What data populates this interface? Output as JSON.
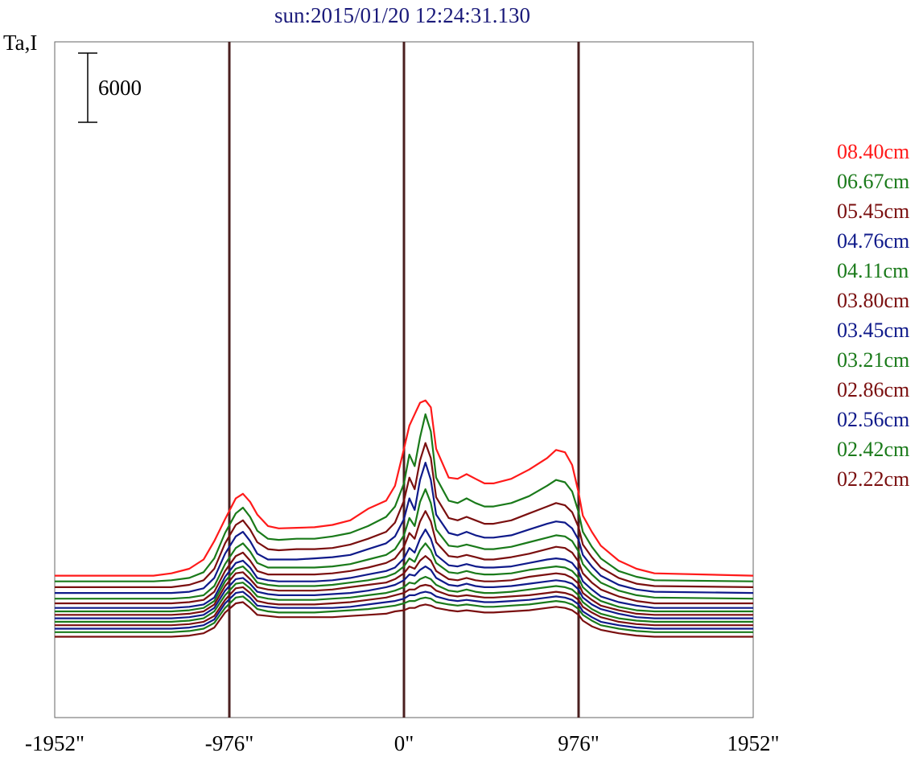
{
  "chart_data": {
    "type": "line",
    "title": "sun:2015/01/20 12:24:31.130",
    "ylabel": "Ta,I",
    "scale_bar_label": "6000",
    "xlim": [
      -1952,
      1952
    ],
    "x_ticks": [
      "-1952\"",
      "-976\"",
      "0\"",
      "976\"",
      "1952\""
    ],
    "vertical_lines_at": [
      -976,
      0,
      976
    ],
    "legend": [
      "08.40cm",
      "06.67cm",
      "05.45cm",
      "04.76cm",
      "04.11cm",
      "03.80cm",
      "03.45cm",
      "03.21cm",
      "02.86cm",
      "02.56cm",
      "02.42cm",
      "02.22cm"
    ],
    "legend_colors": [
      "#ff1a1a",
      "#1a7a1a",
      "#7a0f0f",
      "#0f1a8a",
      "#1a7a1a",
      "#7a0f0f",
      "#0f1a8a",
      "#1a7a1a",
      "#7a0f0f",
      "#0f1a8a",
      "#1a7a1a",
      "#7a0f0f"
    ],
    "series_colors": [
      "#ff1a1a",
      "#1a7a1a",
      "#7a0f0f",
      "#0f1a8a",
      "#1a7a1a",
      "#7a0f0f",
      "#0f1a8a",
      "#1a7a1a",
      "#7a0f0f",
      "#0f1a8a",
      "#1a7a1a",
      "#7a0f0f",
      "#0f1a8a",
      "#1a7a1a",
      "#7a0f0f"
    ],
    "profile_x": [
      -1952,
      -1400,
      -1300,
      -1200,
      -1120,
      -1060,
      -1000,
      -940,
      -900,
      -860,
      -820,
      -760,
      -700,
      -600,
      -500,
      -400,
      -300,
      -200,
      -100,
      -50,
      0,
      30,
      60,
      90,
      120,
      150,
      180,
      250,
      300,
      350,
      400,
      450,
      500,
      600,
      700,
      800,
      850,
      900,
      940,
      976,
      1000,
      1050,
      1100,
      1200,
      1300,
      1400,
      1952
    ],
    "series": [
      {
        "offset": 3100,
        "values": [
          0,
          0,
          200,
          600,
          1400,
          3000,
          4900,
          6700,
          7100,
          6400,
          5300,
          4300,
          4100,
          4150,
          4200,
          4400,
          4800,
          5800,
          6500,
          7800,
          11000,
          13000,
          14000,
          15000,
          15200,
          14600,
          11000,
          8500,
          8400,
          8800,
          8400,
          8000,
          8000,
          8400,
          9200,
          10200,
          10900,
          10700,
          9600,
          7200,
          5200,
          3800,
          2600,
          1300,
          600,
          200,
          0
        ]
      },
      {
        "offset": 2600,
        "values": [
          0,
          0,
          100,
          300,
          800,
          2000,
          4200,
          5900,
          6400,
          5600,
          4400,
          3700,
          3600,
          3700,
          3700,
          3900,
          4200,
          4800,
          5600,
          6500,
          8500,
          11000,
          10000,
          12500,
          14500,
          13000,
          9000,
          7000,
          6800,
          7200,
          6800,
          6500,
          6500,
          6800,
          7400,
          8300,
          8800,
          8600,
          7800,
          6000,
          4300,
          3000,
          2000,
          900,
          400,
          100,
          0
        ]
      },
      {
        "offset": 2100,
        "values": [
          0,
          0,
          0,
          200,
          600,
          1600,
          3800,
          5400,
          5800,
          5000,
          3900,
          3300,
          3200,
          3300,
          3300,
          3400,
          3700,
          4200,
          4800,
          5600,
          7500,
          9500,
          8500,
          11000,
          12500,
          11200,
          7800,
          6000,
          5800,
          6100,
          5800,
          5500,
          5500,
          5800,
          6400,
          7000,
          7300,
          7100,
          6500,
          5200,
          3700,
          2600,
          1700,
          800,
          300,
          100,
          0
        ]
      },
      {
        "offset": 1600,
        "values": [
          0,
          0,
          0,
          100,
          400,
          1300,
          3400,
          4900,
          5300,
          4500,
          3400,
          2900,
          2900,
          2900,
          3000,
          3100,
          3300,
          3800,
          4300,
          4900,
          6400,
          8200,
          7200,
          9800,
          11300,
          9800,
          6800,
          5200,
          5000,
          5300,
          5000,
          4800,
          4800,
          5000,
          5500,
          6000,
          6200,
          6100,
          5600,
          4600,
          3300,
          2300,
          1500,
          700,
          300,
          100,
          0
        ]
      },
      {
        "offset": 1100,
        "values": [
          0,
          0,
          0,
          100,
          300,
          1100,
          3000,
          4400,
          4800,
          4100,
          3100,
          2700,
          2700,
          2700,
          2700,
          2800,
          3000,
          3400,
          3800,
          4300,
          5500,
          7000,
          6300,
          8400,
          9500,
          8300,
          6000,
          4600,
          4500,
          4700,
          4500,
          4300,
          4300,
          4500,
          4900,
          5300,
          5500,
          5400,
          5000,
          4100,
          3000,
          2100,
          1400,
          700,
          300,
          100,
          0
        ]
      },
      {
        "offset": 700,
        "values": [
          0,
          0,
          0,
          100,
          300,
          1000,
          2800,
          4100,
          4400,
          3700,
          2800,
          2500,
          2500,
          2500,
          2500,
          2600,
          2800,
          3100,
          3500,
          3900,
          4900,
          6100,
          5600,
          7100,
          8000,
          7100,
          5300,
          4100,
          4000,
          4200,
          4000,
          3800,
          3800,
          4000,
          4300,
          4700,
          4900,
          4800,
          4400,
          3600,
          2600,
          1800,
          1200,
          600,
          200,
          0,
          0
        ]
      },
      {
        "offset": 300,
        "values": [
          0,
          0,
          0,
          100,
          300,
          900,
          2700,
          3900,
          4100,
          3500,
          2600,
          2400,
          2300,
          2300,
          2300,
          2400,
          2600,
          2900,
          3200,
          3500,
          4300,
          5200,
          4800,
          6000,
          6800,
          6000,
          4600,
          3700,
          3600,
          3800,
          3600,
          3500,
          3500,
          3600,
          3900,
          4200,
          4300,
          4200,
          3900,
          3200,
          2300,
          1600,
          1000,
          500,
          200,
          0,
          0
        ]
      },
      {
        "offset": 0,
        "values": [
          0,
          0,
          0,
          100,
          300,
          900,
          2600,
          3700,
          3900,
          3300,
          2500,
          2300,
          2200,
          2200,
          2200,
          2300,
          2500,
          2700,
          3000,
          3300,
          3900,
          4600,
          4300,
          5300,
          5900,
          5300,
          4200,
          3400,
          3300,
          3500,
          3300,
          3200,
          3200,
          3300,
          3600,
          3800,
          3900,
          3800,
          3500,
          2900,
          2100,
          1400,
          900,
          400,
          100,
          0,
          0
        ]
      },
      {
        "offset": -300,
        "values": [
          0,
          0,
          0,
          100,
          300,
          900,
          2500,
          3600,
          3700,
          3100,
          2400,
          2200,
          2100,
          2100,
          2100,
          2200,
          2400,
          2600,
          2800,
          3100,
          3600,
          4200,
          4000,
          4700,
          5100,
          4700,
          3800,
          3100,
          3000,
          3200,
          3000,
          2900,
          2900,
          3000,
          3300,
          3500,
          3600,
          3500,
          3200,
          2700,
          1900,
          1300,
          800,
          400,
          100,
          0,
          0
        ]
      },
      {
        "offset": -600,
        "values": [
          0,
          0,
          0,
          100,
          300,
          900,
          2400,
          3400,
          3500,
          3000,
          2300,
          2100,
          2000,
          2000,
          2000,
          2100,
          2200,
          2400,
          2700,
          2900,
          3300,
          3800,
          3700,
          4200,
          4500,
          4200,
          3500,
          2900,
          2800,
          3000,
          2800,
          2700,
          2700,
          2800,
          3000,
          3200,
          3300,
          3200,
          3000,
          2500,
          1800,
          1200,
          800,
          400,
          100,
          0,
          0
        ]
      },
      {
        "offset": -900,
        "values": [
          0,
          0,
          0,
          100,
          300,
          900,
          2300,
          3300,
          3400,
          2900,
          2200,
          2000,
          1900,
          1900,
          1900,
          2000,
          2100,
          2300,
          2500,
          2700,
          3000,
          3400,
          3300,
          3700,
          3900,
          3700,
          3200,
          2700,
          2600,
          2800,
          2600,
          2500,
          2500,
          2600,
          2800,
          3000,
          3100,
          3000,
          2800,
          2300,
          1700,
          1100,
          700,
          300,
          100,
          0,
          0
        ]
      },
      {
        "offset": -1200,
        "values": [
          0,
          0,
          0,
          100,
          300,
          800,
          2200,
          3200,
          3300,
          2800,
          2100,
          1900,
          1800,
          1800,
          1800,
          1900,
          2000,
          2200,
          2400,
          2600,
          2800,
          3100,
          3100,
          3400,
          3500,
          3400,
          3000,
          2600,
          2500,
          2600,
          2500,
          2400,
          2400,
          2500,
          2600,
          2800,
          2900,
          2800,
          2600,
          2200,
          1600,
          1100,
          700,
          300,
          100,
          0,
          0
        ]
      },
      {
        "offset": -1500,
        "values": [
          0,
          0,
          0,
          100,
          300,
          800,
          2200,
          3100,
          3200,
          2700,
          2000,
          1900,
          1800,
          1800,
          1800,
          1800,
          1900,
          2100,
          2300,
          2400,
          2600,
          2900,
          2900,
          3100,
          3200,
          3100,
          2800,
          2500,
          2400,
          2500,
          2400,
          2300,
          2300,
          2400,
          2500,
          2700,
          2800,
          2700,
          2500,
          2100,
          1500,
          1000,
          600,
          300,
          100,
          0,
          0
        ]
      },
      {
        "offset": -1800,
        "values": [
          0,
          0,
          0,
          100,
          300,
          800,
          2100,
          3000,
          3100,
          2600,
          2000,
          1800,
          1700,
          1700,
          1700,
          1800,
          1900,
          2000,
          2200,
          2300,
          2500,
          2700,
          2700,
          2900,
          3000,
          2900,
          2600,
          2400,
          2300,
          2400,
          2300,
          2200,
          2200,
          2300,
          2400,
          2600,
          2700,
          2600,
          2400,
          2000,
          1500,
          1000,
          600,
          300,
          100,
          0,
          0
        ]
      },
      {
        "offset": -2200,
        "values": [
          0,
          0,
          0,
          100,
          300,
          800,
          2100,
          2900,
          3000,
          2500,
          1900,
          1800,
          1700,
          1700,
          1700,
          1700,
          1800,
          1900,
          2000,
          2200,
          2300,
          2500,
          2500,
          2700,
          2800,
          2700,
          2500,
          2300,
          2200,
          2300,
          2200,
          2100,
          2100,
          2200,
          2300,
          2500,
          2600,
          2500,
          2300,
          1900,
          1400,
          900,
          600,
          300,
          100,
          0,
          0
        ]
      }
    ]
  }
}
